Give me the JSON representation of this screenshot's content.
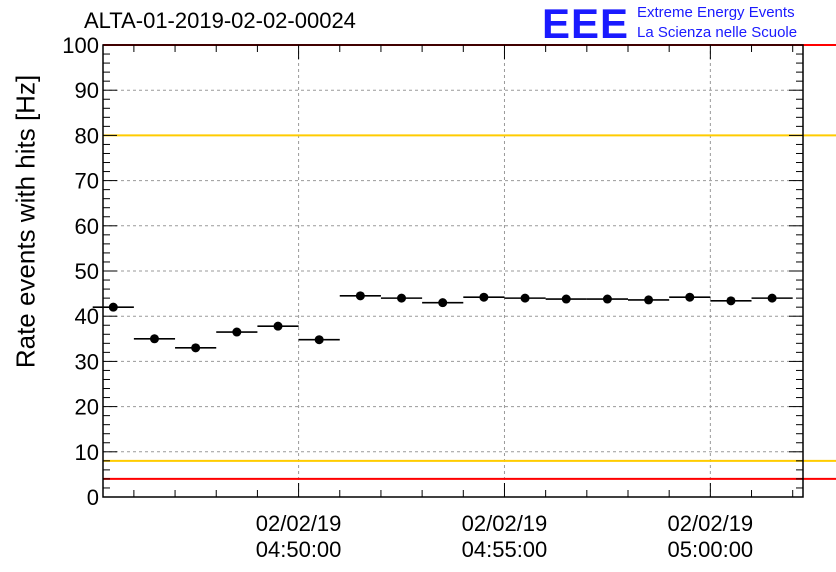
{
  "title": "ALTA-01-2019-02-02-00024",
  "logo": {
    "mark": "EEE",
    "line1": "Extreme Energy Events",
    "line2": "La Scienza nelle Scuole"
  },
  "chart_data": {
    "type": "scatter",
    "title": "ALTA-01-2019-02-02-00024",
    "xlabel": "",
    "ylabel": "Rate events with hits [Hz]",
    "ylim": [
      0,
      100
    ],
    "yticks": [
      0,
      10,
      20,
      30,
      40,
      50,
      60,
      70,
      80,
      90,
      100
    ],
    "xtick_labels": [
      {
        "x": "04:50:00",
        "date": "02/02/19",
        "time": "04:50:00"
      },
      {
        "x": "04:55:00",
        "date": "02/02/19",
        "time": "04:55:00"
      },
      {
        "x": "05:00:00",
        "date": "02/02/19",
        "time": "05:00:00"
      }
    ],
    "xlim": [
      "04:45:15",
      "05:02:15"
    ],
    "grid": true,
    "reference_lines": [
      {
        "y": 100,
        "color": "#ff0000"
      },
      {
        "y": 80,
        "color": "#ffcc00"
      },
      {
        "y": 8,
        "color": "#ffcc00"
      },
      {
        "y": 4,
        "color": "#ff0000"
      }
    ],
    "series": [
      {
        "points": [
          {
            "x": "04:45:30",
            "y": 42.0
          },
          {
            "x": "04:46:30",
            "y": 35.0
          },
          {
            "x": "04:47:30",
            "y": 33.0
          },
          {
            "x": "04:48:30",
            "y": 36.5
          },
          {
            "x": "04:49:30",
            "y": 37.8
          },
          {
            "x": "04:50:30",
            "y": 34.8
          },
          {
            "x": "04:51:30",
            "y": 44.5
          },
          {
            "x": "04:52:30",
            "y": 44.0
          },
          {
            "x": "04:53:30",
            "y": 43.0
          },
          {
            "x": "04:54:30",
            "y": 44.2
          },
          {
            "x": "04:55:30",
            "y": 44.0
          },
          {
            "x": "04:56:30",
            "y": 43.8
          },
          {
            "x": "04:57:30",
            "y": 43.8
          },
          {
            "x": "04:58:30",
            "y": 43.6
          },
          {
            "x": "04:59:30",
            "y": 44.2
          },
          {
            "x": "05:00:30",
            "y": 43.4
          },
          {
            "x": "05:01:30",
            "y": 44.0
          }
        ],
        "bin_width_seconds": 60,
        "color": "#000000"
      }
    ]
  }
}
